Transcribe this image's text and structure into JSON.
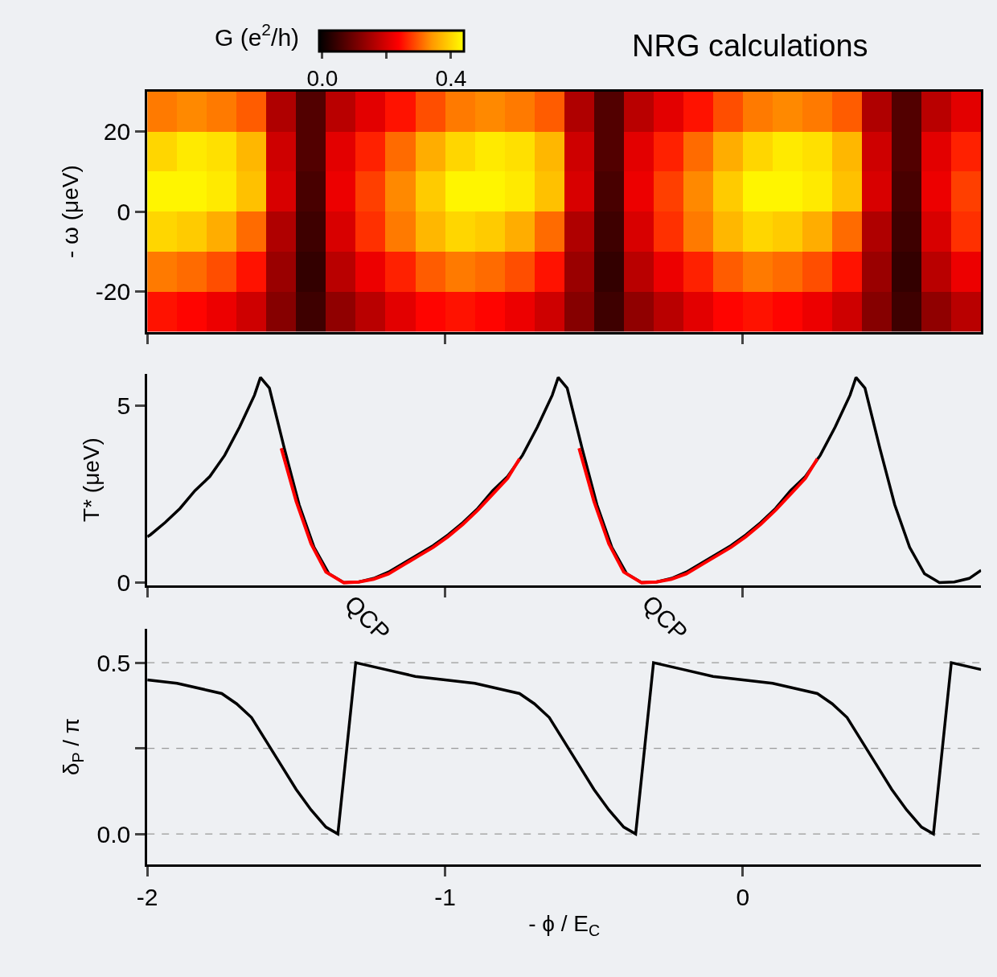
{
  "chart_data": [
    {
      "type": "heatmap",
      "title": "NRG calculations",
      "ylabel": "- ω (μeV)",
      "clabel": "G (e$^{2}$/h)",
      "x": [
        -1.95,
        -1.85,
        -1.75,
        -1.65,
        -1.55,
        -1.45,
        -1.35,
        -1.25,
        -1.15,
        -1.05,
        -0.95,
        -0.85,
        -0.75,
        -0.65,
        -0.55,
        -0.45,
        -0.35,
        -0.25,
        -0.15,
        -0.05,
        0.05,
        0.15,
        0.25,
        0.35,
        0.45,
        0.55,
        0.65,
        0.75
      ],
      "y": [
        25,
        15,
        5,
        -5,
        -15,
        -25
      ],
      "cells": [
        [
          0.32,
          0.33,
          0.32,
          0.3,
          0.16,
          0.07,
          0.17,
          0.21,
          0.25,
          0.29,
          0.32,
          0.33,
          0.32,
          0.3,
          0.16,
          0.07,
          0.17,
          0.21,
          0.25,
          0.29,
          0.32,
          0.33,
          0.32,
          0.3,
          0.16,
          0.07,
          0.17,
          0.21
        ],
        [
          0.4,
          0.42,
          0.41,
          0.37,
          0.19,
          0.07,
          0.21,
          0.26,
          0.31,
          0.36,
          0.4,
          0.42,
          0.41,
          0.37,
          0.19,
          0.07,
          0.21,
          0.26,
          0.31,
          0.36,
          0.4,
          0.42,
          0.41,
          0.37,
          0.19,
          0.07,
          0.21,
          0.26
        ],
        [
          0.43,
          0.43,
          0.42,
          0.38,
          0.2,
          0.06,
          0.22,
          0.28,
          0.33,
          0.39,
          0.43,
          0.43,
          0.42,
          0.38,
          0.2,
          0.06,
          0.22,
          0.28,
          0.33,
          0.39,
          0.43,
          0.43,
          0.42,
          0.38,
          0.2,
          0.06,
          0.22,
          0.28
        ],
        [
          0.4,
          0.39,
          0.36,
          0.31,
          0.16,
          0.05,
          0.2,
          0.27,
          0.32,
          0.37,
          0.4,
          0.39,
          0.36,
          0.31,
          0.16,
          0.05,
          0.2,
          0.27,
          0.32,
          0.37,
          0.4,
          0.39,
          0.36,
          0.31,
          0.16,
          0.05,
          0.2,
          0.27
        ],
        [
          0.32,
          0.31,
          0.29,
          0.25,
          0.14,
          0.04,
          0.17,
          0.22,
          0.26,
          0.3,
          0.32,
          0.31,
          0.29,
          0.25,
          0.14,
          0.04,
          0.17,
          0.22,
          0.26,
          0.3,
          0.32,
          0.31,
          0.29,
          0.25,
          0.14,
          0.04,
          0.17,
          0.22
        ],
        [
          0.25,
          0.24,
          0.22,
          0.19,
          0.12,
          0.05,
          0.13,
          0.17,
          0.21,
          0.24,
          0.25,
          0.24,
          0.22,
          0.19,
          0.12,
          0.05,
          0.13,
          0.17,
          0.21,
          0.24,
          0.25,
          0.24,
          0.22,
          0.19,
          0.12,
          0.05,
          0.13,
          0.17
        ]
      ],
      "clim": [
        -0.01,
        0.44
      ],
      "cticks": [
        {
          "value": 0,
          "label": "0.0"
        },
        {
          "value": 0.2,
          "label": null
        },
        {
          "value": 0.4,
          "label": "0.4"
        }
      ],
      "xlim": [
        -2,
        0.8
      ],
      "xticks": [
        -2,
        -1,
        0
      ],
      "ylim": [
        -30,
        30
      ],
      "yticks": [
        -20,
        0,
        20
      ],
      "tick_labels": "y"
    },
    {
      "type": "line",
      "ylabel": "T* (μeV)",
      "series": [
        {
          "color": "#000000",
          "x": [
            -2.0,
            -1.99,
            -1.94,
            -1.89,
            -1.84,
            -1.79,
            -1.74,
            -1.69,
            -1.64,
            -1.62,
            -1.59,
            -1.54,
            -1.49,
            -1.44,
            -1.39,
            -1.34,
            -1.29,
            -1.24,
            -1.19,
            -1.14,
            -1.09,
            -1.04,
            -0.99,
            -0.94,
            -0.89,
            -0.84,
            -0.79,
            -0.74,
            -0.69,
            -0.64,
            -0.62,
            -0.59,
            -0.54,
            -0.49,
            -0.44,
            -0.39,
            -0.34,
            -0.29,
            -0.24,
            -0.19,
            -0.14,
            -0.09,
            -0.04,
            0.01,
            0.06,
            0.11,
            0.16,
            0.21,
            0.26,
            0.31,
            0.36,
            0.38,
            0.41,
            0.46,
            0.51,
            0.56,
            0.61,
            0.66,
            0.71,
            0.76,
            0.8
          ],
          "values": [
            1.3,
            1.35,
            1.7,
            2.1,
            2.6,
            3.0,
            3.6,
            4.4,
            5.3,
            5.8,
            5.5,
            3.8,
            2.2,
            1.0,
            0.25,
            0,
            0.02,
            0.12,
            0.3,
            0.55,
            0.8,
            1.05,
            1.35,
            1.7,
            2.1,
            2.6,
            3.0,
            3.6,
            4.4,
            5.3,
            5.8,
            5.5,
            3.8,
            2.2,
            1.0,
            0.25,
            0,
            0.02,
            0.12,
            0.3,
            0.55,
            0.8,
            1.05,
            1.35,
            1.7,
            2.1,
            2.6,
            3.0,
            3.6,
            4.4,
            5.3,
            5.8,
            5.5,
            3.8,
            2.2,
            1.0,
            0.25,
            0,
            0.02,
            0.12,
            0.35
          ]
        },
        {
          "color": "#ff0000",
          "x": [
            -1.55,
            -1.5,
            -1.45,
            -1.4,
            -1.34,
            -1.29,
            -1.24,
            -1.19,
            -1.14,
            -1.09,
            -1.04,
            -0.99,
            -0.94,
            -0.89,
            -0.84,
            -0.79,
            -0.75
          ],
          "values": [
            3.8,
            2.3,
            1.1,
            0.3,
            0,
            0.02,
            0.1,
            0.25,
            0.5,
            0.75,
            1.0,
            1.3,
            1.65,
            2.05,
            2.5,
            2.95,
            3.5
          ]
        },
        {
          "color": "#ff0000",
          "x": [
            -0.55,
            -0.5,
            -0.45,
            -0.4,
            -0.34,
            -0.29,
            -0.24,
            -0.19,
            -0.14,
            -0.09,
            -0.04,
            0.01,
            0.06,
            0.11,
            0.16,
            0.21,
            0.25
          ],
          "values": [
            3.8,
            2.3,
            1.1,
            0.3,
            0,
            0.02,
            0.1,
            0.25,
            0.5,
            0.75,
            1.0,
            1.3,
            1.65,
            2.05,
            2.5,
            2.95,
            3.5
          ]
        }
      ],
      "annotations": [
        {
          "text": "QCP",
          "x": -1.34,
          "y": 0
        },
        {
          "text": "QCP",
          "x": -0.34,
          "y": 0
        }
      ],
      "xlim": [
        -2,
        0.8
      ],
      "xticks": [
        -2,
        -1,
        0
      ],
      "ylim": [
        -0.08,
        5.9
      ],
      "yticks": [
        0,
        5
      ],
      "tick_labels": "y"
    },
    {
      "type": "line",
      "xlabel": "- ϕ / E$_{C}$",
      "ylabel": "δ$_{P}$ / π",
      "series": [
        {
          "color": "#000000",
          "x": [
            -2.0,
            -1.9,
            -1.8,
            -1.75,
            -1.7,
            -1.65,
            -1.6,
            -1.55,
            -1.5,
            -1.45,
            -1.4,
            -1.36,
            -1.33,
            -1.3,
            -1.25,
            -1.2,
            -1.1,
            -1.0,
            -0.9,
            -0.8,
            -0.75,
            -0.7,
            -0.65,
            -0.6,
            -0.55,
            -0.5,
            -0.45,
            -0.4,
            -0.36,
            -0.33,
            -0.3,
            -0.25,
            -0.2,
            -0.1,
            0.0,
            0.1,
            0.2,
            0.25,
            0.3,
            0.35,
            0.4,
            0.45,
            0.5,
            0.55,
            0.6,
            0.64,
            0.67,
            0.7,
            0.75,
            0.8
          ],
          "values": [
            0.45,
            0.44,
            0.42,
            0.41,
            0.38,
            0.34,
            0.27,
            0.2,
            0.13,
            0.07,
            0.02,
            0.0,
            0.25,
            0.5,
            0.49,
            0.48,
            0.46,
            0.45,
            0.44,
            0.42,
            0.41,
            0.38,
            0.34,
            0.27,
            0.2,
            0.13,
            0.07,
            0.02,
            0.0,
            0.25,
            0.5,
            0.49,
            0.48,
            0.46,
            0.45,
            0.44,
            0.42,
            0.41,
            0.38,
            0.34,
            0.27,
            0.2,
            0.13,
            0.07,
            0.02,
            0.0,
            0.25,
            0.5,
            0.49,
            0.48
          ]
        }
      ],
      "ref_lines": [
        {
          "axis": "y",
          "value": 0,
          "color": "#999999",
          "line_style": "dashed"
        },
        {
          "axis": "y",
          "value": 0.25,
          "color": "#999999",
          "line_style": "dashed"
        },
        {
          "axis": "y",
          "value": 0.5,
          "color": "#999999",
          "line_style": "dashed"
        }
      ],
      "xlim": [
        -2,
        0.8
      ],
      "xticks": [
        -2,
        -1,
        0
      ],
      "ylim": [
        -0.09,
        0.6
      ],
      "yticks": [
        {
          "value": 0,
          "label": "0.0"
        },
        {
          "value": 0.25,
          "label": null
        },
        {
          "value": 0.5,
          "label": "0.5"
        }
      ]
    }
  ]
}
